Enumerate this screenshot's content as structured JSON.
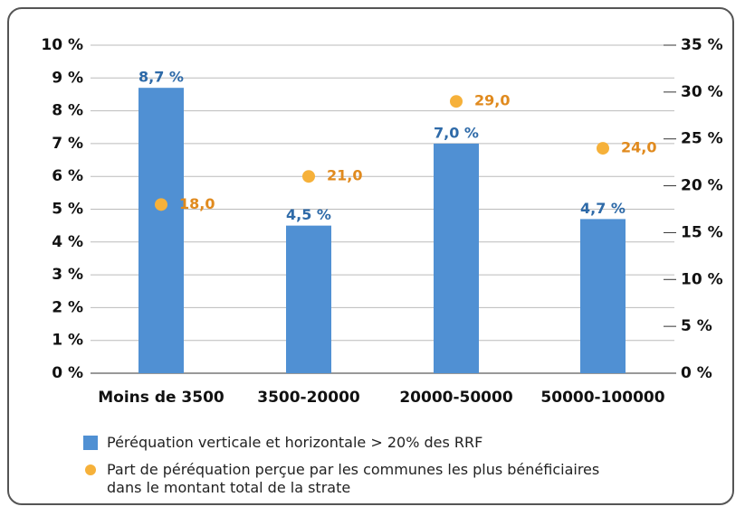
{
  "chart_data": {
    "type": "bar",
    "categories": [
      "Moins de 3500",
      "3500-20000",
      "20000-50000",
      "50000-100000"
    ],
    "series": [
      {
        "name": "Péréquation verticale et horizontale  > 20% des RRF",
        "type": "bar",
        "color": "#5090d3",
        "label_color": "#2e6aa8",
        "values": [
          8.7,
          4.5,
          7.0,
          4.7
        ],
        "value_labels": [
          "8,7 %",
          "4,5 %",
          "7,0 %",
          "4,7 %"
        ]
      },
      {
        "name": "Part de péréquation perçue par les communes les plus bénéficiaires\ndans le montant total de la strate",
        "type": "scatter",
        "axis": "y2",
        "color": "#f6b13a",
        "label_color": "#e08a1e",
        "values": [
          18.0,
          21.0,
          29.0,
          24.0
        ],
        "value_labels": [
          "18,0",
          "21,0",
          "29,0",
          "24,0"
        ]
      }
    ],
    "ylim": [
      0,
      10
    ],
    "yticks": [
      {
        "value": 0,
        "label": "0 %"
      },
      {
        "value": 1,
        "label": "1 %"
      },
      {
        "value": 2,
        "label": "2 %"
      },
      {
        "value": 3,
        "label": "3 %"
      },
      {
        "value": 4,
        "label": "4 %"
      },
      {
        "value": 5,
        "label": "5 %"
      },
      {
        "value": 6,
        "label": "6 %"
      },
      {
        "value": 7,
        "label": "7 %"
      },
      {
        "value": 8,
        "label": "8 %"
      },
      {
        "value": 9,
        "label": "9 %"
      },
      {
        "value": 10,
        "label": "10 %"
      }
    ],
    "y2lim": [
      0,
      35
    ],
    "y2ticks": [
      {
        "value": 0,
        "label": "0 %"
      },
      {
        "value": 5,
        "label": "5 %"
      },
      {
        "value": 10,
        "label": "10 %"
      },
      {
        "value": 15,
        "label": "15 %"
      },
      {
        "value": 20,
        "label": "20 %"
      },
      {
        "value": 25,
        "label": "25 %"
      },
      {
        "value": 30,
        "label": "30 %"
      },
      {
        "value": 35,
        "label": "35 %"
      }
    ],
    "grid": true
  }
}
